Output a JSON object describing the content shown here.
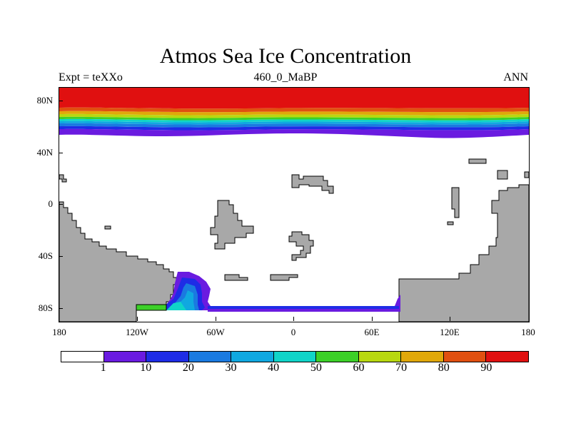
{
  "title": "Atmos Sea Ice Concentration",
  "subtitle_left": "Expt = teXXo",
  "subtitle_center": "460_0_MaBP",
  "subtitle_right": "ANN",
  "y_axis_labels": [
    "80N",
    "40N",
    "0",
    "40S",
    "80S"
  ],
  "x_axis_labels": [
    "180",
    "120W",
    "60W",
    "0",
    "60E",
    "120E",
    "180"
  ],
  "colorbar": {
    "colors": [
      "#ffffff",
      "#6a1be0",
      "#1e2ce6",
      "#1a7ae0",
      "#10a8e0",
      "#10d4c8",
      "#3cd028",
      "#b8d810",
      "#e0a80a",
      "#e05010",
      "#e01010"
    ],
    "labels": [
      "1",
      "10",
      "20",
      "30",
      "40",
      "50",
      "60",
      "70",
      "80",
      "90"
    ]
  },
  "land_color": "#a8a8a8"
}
